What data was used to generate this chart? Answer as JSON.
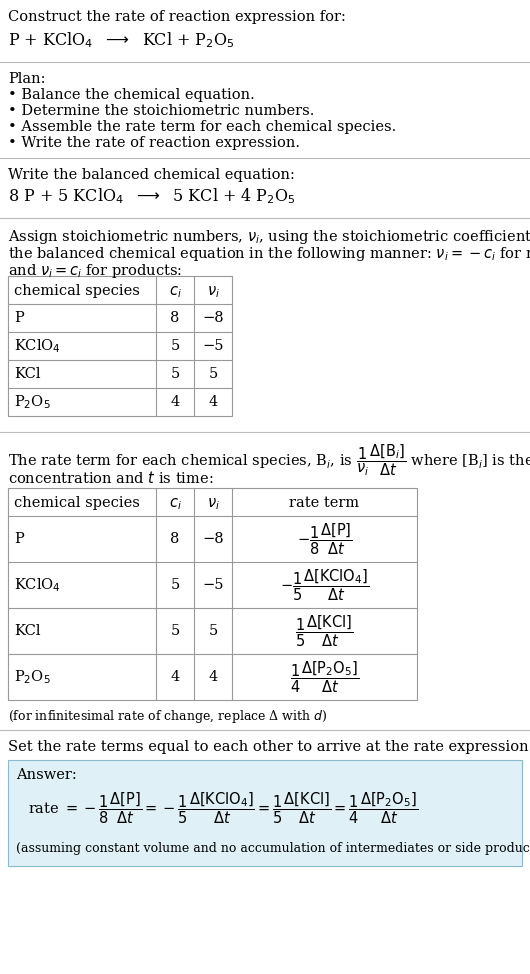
{
  "bg_color": "#ffffff",
  "answer_bg_color": "#dff0f7",
  "border_color": "#bbbbbb",
  "text_color": "#000000",
  "table_border_color": "#999999",
  "title_text": "Construct the rate of reaction expression for:",
  "plan_header": "Plan:",
  "plan_items": [
    "• Balance the chemical equation.",
    "• Determine the stoichiometric numbers.",
    "• Assemble the rate term for each chemical species.",
    "• Write the rate of reaction expression."
  ],
  "balanced_header": "Write the balanced chemical equation:",
  "assign_text1": "Assign stoichiometric numbers, $\\nu_i$, using the stoichiometric coefficients, $c_i$, from",
  "assign_text2": "the balanced chemical equation in the following manner: $\\nu_i = -c_i$ for reactants",
  "assign_text3": "and $\\nu_i = c_i$ for products:",
  "table1_headers": [
    "chemical species",
    "$c_i$",
    "$\\nu_i$"
  ],
  "table1_rows": [
    [
      "P",
      "8",
      "−8"
    ],
    [
      "KClO$_4$",
      "5",
      "−5"
    ],
    [
      "KCl",
      "5",
      "5"
    ],
    [
      "P$_2$O$_5$",
      "4",
      "4"
    ]
  ],
  "rate_term_text2": "concentration and $t$ is time:",
  "table2_headers": [
    "chemical species",
    "$c_i$",
    "$\\nu_i$",
    "rate term"
  ],
  "table2_species": [
    "P",
    "KClO$_4$",
    "KCl",
    "P$_2$O$_5$"
  ],
  "table2_ci": [
    "8",
    "5",
    "5",
    "4"
  ],
  "table2_ni": [
    "−8",
    "−5",
    "5",
    "4"
  ],
  "table2_sign": [
    "-",
    "-",
    "",
    ""
  ],
  "table2_num": [
    "1",
    "1",
    "1",
    "1"
  ],
  "table2_den": [
    "8",
    "5",
    "5",
    "4"
  ],
  "table2_species_bracket": [
    "[P]",
    "[KClO$_4$]",
    "[KCl]",
    "[P$_2$O$_5$]"
  ],
  "infinitesimal_note": "(for infinitesimal rate of change, replace Δ with $d$)",
  "set_equal_text": "Set the rate terms equal to each other to arrive at the rate expression:",
  "answer_label": "Answer:",
  "assuming_note": "(assuming constant volume and no accumulation of intermediates or side products)",
  "ans_signs": [
    "-",
    "-",
    "",
    ""
  ],
  "ans_nums": [
    "1",
    "1",
    "1",
    "1"
  ],
  "ans_dens": [
    "8",
    "5",
    "5",
    "4"
  ],
  "ans_species": [
    "[P]",
    "[KClO$_4$]",
    "[KCl]",
    "[P$_2$O$_5$]"
  ]
}
